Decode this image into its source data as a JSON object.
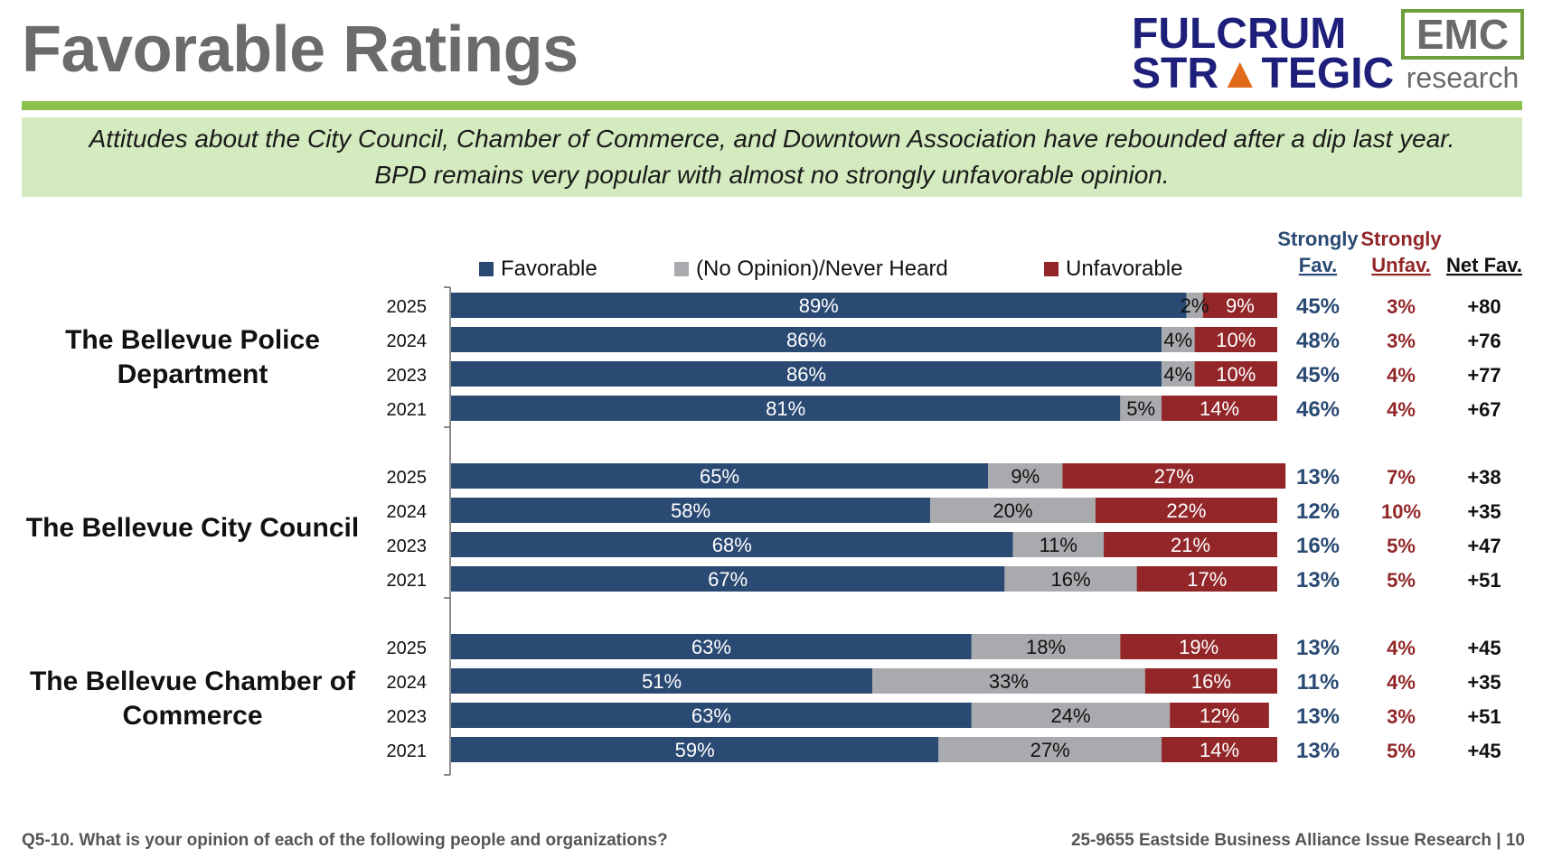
{
  "title": "Favorable Ratings",
  "logos": {
    "fulcrum_line1": "FULCRUM",
    "fulcrum_line2_a": "STR",
    "fulcrum_line2_tri": "▲",
    "fulcrum_line2_b": "TEGIC",
    "emc_main": "EMC",
    "emc_sub": "research"
  },
  "headline": {
    "line1": "Attitudes about the City Council, Chamber of Commerce, and Downtown Association have rebounded after a dip last year.",
    "line2": "BPD remains very popular with almost no strongly unfavorable opinion."
  },
  "footer": {
    "question": "Q5-10. What is your opinion of each of the following people and organizations?",
    "source": "25-9655 Eastside Business Alliance Issue Research | 10"
  },
  "colors": {
    "favorable": "#2a4a73",
    "no_opinion": "#a9aaad",
    "unfavorable": "#922628",
    "strong_fav_text": "#2a4a73",
    "strong_unfav_text": "#922628"
  },
  "chart_data": {
    "type": "bar",
    "orientation": "horizontal-stacked",
    "xlim": [
      0,
      100
    ],
    "legend": [
      "Favorable",
      "(No Opinion)/Never Heard",
      "Unfavorable"
    ],
    "columns": {
      "strong_fav": [
        "Strongly",
        "Fav."
      ],
      "strong_unfav": [
        "Strongly",
        "Unfav."
      ],
      "net_fav": "Net Fav."
    },
    "groups": [
      {
        "name_lines": [
          "The Bellevue Police",
          "Department"
        ],
        "rows": [
          {
            "year": "2025",
            "favorable": 89,
            "no_opinion": 2,
            "unfavorable": 9,
            "fav_label": "89%",
            "no_label": "2%",
            "unfav_label": "9%",
            "strong_fav": "45%",
            "strong_unfav": "3%",
            "net": "+80"
          },
          {
            "year": "2024",
            "favorable": 86,
            "no_opinion": 4,
            "unfavorable": 10,
            "fav_label": "86%",
            "no_label": "4%",
            "unfav_label": "10%",
            "strong_fav": "48%",
            "strong_unfav": "3%",
            "net": "+76"
          },
          {
            "year": "2023",
            "favorable": 86,
            "no_opinion": 4,
            "unfavorable": 10,
            "fav_label": "86%",
            "no_label": "4%",
            "unfav_label": "10%",
            "strong_fav": "45%",
            "strong_unfav": "4%",
            "net": "+77"
          },
          {
            "year": "2021",
            "favorable": 81,
            "no_opinion": 5,
            "unfavorable": 14,
            "fav_label": "81%",
            "no_label": "5%",
            "unfav_label": "14%",
            "strong_fav": "46%",
            "strong_unfav": "4%",
            "net": "+67"
          }
        ]
      },
      {
        "name_lines": [
          "The Bellevue City Council"
        ],
        "rows": [
          {
            "year": "2025",
            "favorable": 65,
            "no_opinion": 9,
            "unfavorable": 27,
            "fav_label": "65%",
            "no_label": "9%",
            "unfav_label": "27%",
            "strong_fav": "13%",
            "strong_unfav": "7%",
            "net": "+38"
          },
          {
            "year": "2024",
            "favorable": 58,
            "no_opinion": 20,
            "unfavorable": 22,
            "fav_label": "58%",
            "no_label": "20%",
            "unfav_label": "22%",
            "strong_fav": "12%",
            "strong_unfav": "10%",
            "net": "+35"
          },
          {
            "year": "2023",
            "favorable": 68,
            "no_opinion": 11,
            "unfavorable": 21,
            "fav_label": "68%",
            "no_label": "11%",
            "unfav_label": "21%",
            "strong_fav": "16%",
            "strong_unfav": "5%",
            "net": "+47"
          },
          {
            "year": "2021",
            "favorable": 67,
            "no_opinion": 16,
            "unfavorable": 17,
            "fav_label": "67%",
            "no_label": "16%",
            "unfav_label": "17%",
            "strong_fav": "13%",
            "strong_unfav": "5%",
            "net": "+51"
          }
        ]
      },
      {
        "name_lines": [
          "The Bellevue Chamber of",
          "Commerce"
        ],
        "rows": [
          {
            "year": "2025",
            "favorable": 63,
            "no_opinion": 18,
            "unfavorable": 19,
            "fav_label": "63%",
            "no_label": "18%",
            "unfav_label": "19%",
            "strong_fav": "13%",
            "strong_unfav": "4%",
            "net": "+45"
          },
          {
            "year": "2024",
            "favorable": 51,
            "no_opinion": 33,
            "unfavorable": 16,
            "fav_label": "51%",
            "no_label": "33%",
            "unfav_label": "16%",
            "strong_fav": "11%",
            "strong_unfav": "4%",
            "net": "+35"
          },
          {
            "year": "2023",
            "favorable": 63,
            "no_opinion": 24,
            "unfavorable": 12,
            "fav_label": "63%",
            "no_label": "24%",
            "unfav_label": "12%",
            "strong_fav": "13%",
            "strong_unfav": "3%",
            "net": "+51"
          },
          {
            "year": "2021",
            "favorable": 59,
            "no_opinion": 27,
            "unfavorable": 14,
            "fav_label": "59%",
            "no_label": "27%",
            "unfav_label": "14%",
            "strong_fav": "13%",
            "strong_unfav": "5%",
            "net": "+45"
          }
        ]
      }
    ]
  }
}
